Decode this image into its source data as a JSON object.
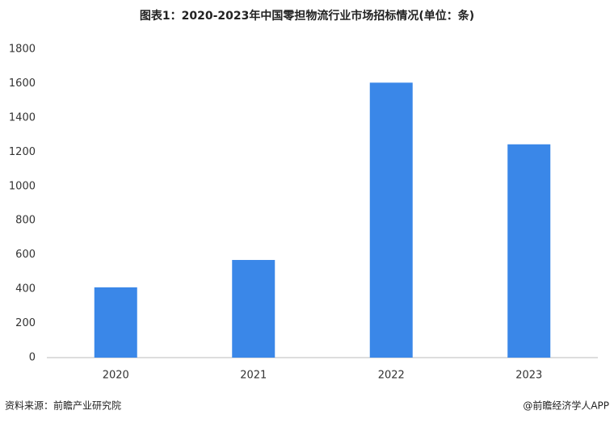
{
  "chart_data": {
    "type": "bar",
    "title": "图表1：2020-2023年中国零担物流行业市场招标情况(单位：条)",
    "categories": [
      "2020",
      "2021",
      "2022",
      "2023"
    ],
    "values": [
      410,
      570,
      1605,
      1245
    ],
    "color": "#3a87e8",
    "ylim": [
      0,
      1800
    ],
    "yticks": [
      0,
      200,
      400,
      600,
      800,
      1000,
      1200,
      1400,
      1600,
      1800
    ],
    "grid": false,
    "source": "资料来源：前瞻产业研究院",
    "credit": "@前瞻经济学人APP"
  }
}
